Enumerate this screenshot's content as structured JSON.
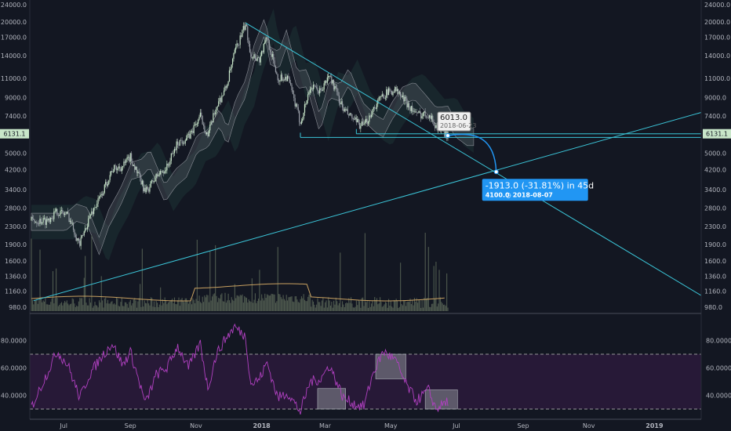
{
  "chart_data": {
    "type": "line",
    "price_axis": {
      "scale": "log",
      "ticks": [
        "24000.0",
        "20000.0",
        "17000.0",
        "14000.0",
        "11000.0",
        "9000.0",
        "7400.0",
        "6131.1",
        "5000.0",
        "4200.0",
        "3400.0",
        "2800.0",
        "2300.0",
        "1900.0",
        "1600.0",
        "1360.0",
        "1160.0",
        "980.0"
      ]
    },
    "time_axis": {
      "labels": [
        "Jul",
        "Sep",
        "Nov",
        "2018",
        "Mar",
        "May",
        "Jul",
        "Sep",
        "Nov",
        "2019"
      ]
    },
    "current_price": "6131.1",
    "price_series": [
      {
        "date": "2017-06-15",
        "close": 2450
      },
      {
        "date": "2017-06-25",
        "close": 2700
      },
      {
        "date": "2017-07-05",
        "close": 2600
      },
      {
        "date": "2017-07-16",
        "close": 1900
      },
      {
        "date": "2017-07-25",
        "close": 2550
      },
      {
        "date": "2017-08-05",
        "close": 3200
      },
      {
        "date": "2017-08-15",
        "close": 4200
      },
      {
        "date": "2017-08-25",
        "close": 4350
      },
      {
        "date": "2017-09-01",
        "close": 4800
      },
      {
        "date": "2017-09-15",
        "close": 3300
      },
      {
        "date": "2017-09-25",
        "close": 3900
      },
      {
        "date": "2017-10-05",
        "close": 4300
      },
      {
        "date": "2017-10-15",
        "close": 5600
      },
      {
        "date": "2017-10-25",
        "close": 5900
      },
      {
        "date": "2017-11-05",
        "close": 7400
      },
      {
        "date": "2017-11-12",
        "close": 6000
      },
      {
        "date": "2017-11-20",
        "close": 8200
      },
      {
        "date": "2017-11-29",
        "close": 10000
      },
      {
        "date": "2017-12-07",
        "close": 14500
      },
      {
        "date": "2017-12-17",
        "close": 19500
      },
      {
        "date": "2017-12-22",
        "close": 14200
      },
      {
        "date": "2017-12-30",
        "close": 13500
      },
      {
        "date": "2018-01-06",
        "close": 17000
      },
      {
        "date": "2018-01-16",
        "close": 11000
      },
      {
        "date": "2018-01-25",
        "close": 11200
      },
      {
        "date": "2018-02-06",
        "close": 6900
      },
      {
        "date": "2018-02-15",
        "close": 10000
      },
      {
        "date": "2018-02-25",
        "close": 9600
      },
      {
        "date": "2018-03-05",
        "close": 11400
      },
      {
        "date": "2018-03-18",
        "close": 7900
      },
      {
        "date": "2018-03-30",
        "close": 6900
      },
      {
        "date": "2018-04-06",
        "close": 6600
      },
      {
        "date": "2018-04-14",
        "close": 7900
      },
      {
        "date": "2018-04-24",
        "close": 9300
      },
      {
        "date": "2018-05-05",
        "close": 9800
      },
      {
        "date": "2018-05-15",
        "close": 8600
      },
      {
        "date": "2018-05-25",
        "close": 7500
      },
      {
        "date": "2018-06-05",
        "close": 7600
      },
      {
        "date": "2018-06-12",
        "close": 6600
      },
      {
        "date": "2018-06-23",
        "close": 6013
      }
    ],
    "volume": {
      "ma_line": true
    },
    "measure_annotation": {
      "start": {
        "date": "2018-06-23",
        "price": 6013
      },
      "end": {
        "date": "2018-08-07",
        "price": 4100
      },
      "start_label_price": "6013.0",
      "start_label_date": "2018-06-23",
      "change_text": "-1913.0 (-31.81%) in 45d",
      "end_price_text": "4100.0",
      "end_date_text": "2018-08-07"
    },
    "rsi_panel": {
      "ticks": [
        "80.0000",
        "60.0000",
        "40.0000"
      ],
      "bands": [
        70,
        30
      ],
      "series": [
        {
          "date": "2017-06-15",
          "rsi": 55
        },
        {
          "date": "2017-06-25",
          "rsi": 72
        },
        {
          "date": "2017-07-05",
          "rsi": 62
        },
        {
          "date": "2017-07-16",
          "rsi": 38
        },
        {
          "date": "2017-07-25",
          "rsi": 55
        },
        {
          "date": "2017-08-05",
          "rsi": 68
        },
        {
          "date": "2017-08-15",
          "rsi": 78
        },
        {
          "date": "2017-08-25",
          "rsi": 62
        },
        {
          "date": "2017-09-01",
          "rsi": 72
        },
        {
          "date": "2017-09-15",
          "rsi": 34
        },
        {
          "date": "2017-09-25",
          "rsi": 55
        },
        {
          "date": "2017-10-05",
          "rsi": 60
        },
        {
          "date": "2017-10-15",
          "rsi": 76
        },
        {
          "date": "2017-10-25",
          "rsi": 60
        },
        {
          "date": "2017-11-05",
          "rsi": 78
        },
        {
          "date": "2017-11-12",
          "rsi": 45
        },
        {
          "date": "2017-11-20",
          "rsi": 70
        },
        {
          "date": "2017-11-29",
          "rsi": 82
        },
        {
          "date": "2017-12-07",
          "rsi": 90
        },
        {
          "date": "2017-12-17",
          "rsi": 83
        },
        {
          "date": "2017-12-22",
          "rsi": 48
        },
        {
          "date": "2017-12-30",
          "rsi": 52
        },
        {
          "date": "2018-01-06",
          "rsi": 64
        },
        {
          "date": "2018-01-16",
          "rsi": 38
        },
        {
          "date": "2018-01-25",
          "rsi": 42
        },
        {
          "date": "2018-02-06",
          "rsi": 28
        },
        {
          "date": "2018-02-15",
          "rsi": 50
        },
        {
          "date": "2018-02-25",
          "rsi": 52
        },
        {
          "date": "2018-03-05",
          "rsi": 62
        },
        {
          "date": "2018-03-18",
          "rsi": 38
        },
        {
          "date": "2018-03-30",
          "rsi": 33
        },
        {
          "date": "2018-04-06",
          "rsi": 32
        },
        {
          "date": "2018-04-14",
          "rsi": 55
        },
        {
          "date": "2018-04-24",
          "rsi": 72
        },
        {
          "date": "2018-05-05",
          "rsi": 66
        },
        {
          "date": "2018-05-15",
          "rsi": 48
        },
        {
          "date": "2018-05-25",
          "rsi": 36
        },
        {
          "date": "2018-06-05",
          "rsi": 44
        },
        {
          "date": "2018-06-12",
          "rsi": 30
        },
        {
          "date": "2018-06-23",
          "rsi": 36
        }
      ],
      "highlight_boxes": [
        {
          "start": "2018-02-22",
          "end": "2018-03-20",
          "low": 30,
          "high": 45
        },
        {
          "start": "2018-04-17",
          "end": "2018-05-15",
          "low": 52,
          "high": 70
        },
        {
          "start": "2018-06-02",
          "end": "2018-07-02",
          "low": 30,
          "high": 44
        }
      ]
    },
    "trendlines": [
      {
        "from": {
          "date": "2017-12-17",
          "price": 19800
        },
        "to": {
          "date": "2018-08-09",
          "price": 4000
        },
        "extended": true
      },
      {
        "from": {
          "date": "2017-06-03",
          "price": 1050
        },
        "to": {
          "date": "2019-01-20",
          "price": 7100
        },
        "extended": true
      }
    ],
    "horizontal_levels": [
      {
        "price": 6131.1,
        "from": "2018-03-30",
        "to": "2019-01-31"
      },
      {
        "price": 5900,
        "from": "2018-02-06",
        "to": "2019-01-31"
      }
    ],
    "colors": {
      "background": "#131722",
      "trendline": "#3bc5d8",
      "candles_up": "#c8e6c9",
      "candles_down": "#9aa0a8",
      "volume": "#4f5a4f",
      "volume_ma": "#c8a060",
      "rsi_line": "#b040c0",
      "rsi_band_fill": "#2a1a3a",
      "annotation_box": "#2196f3"
    }
  }
}
